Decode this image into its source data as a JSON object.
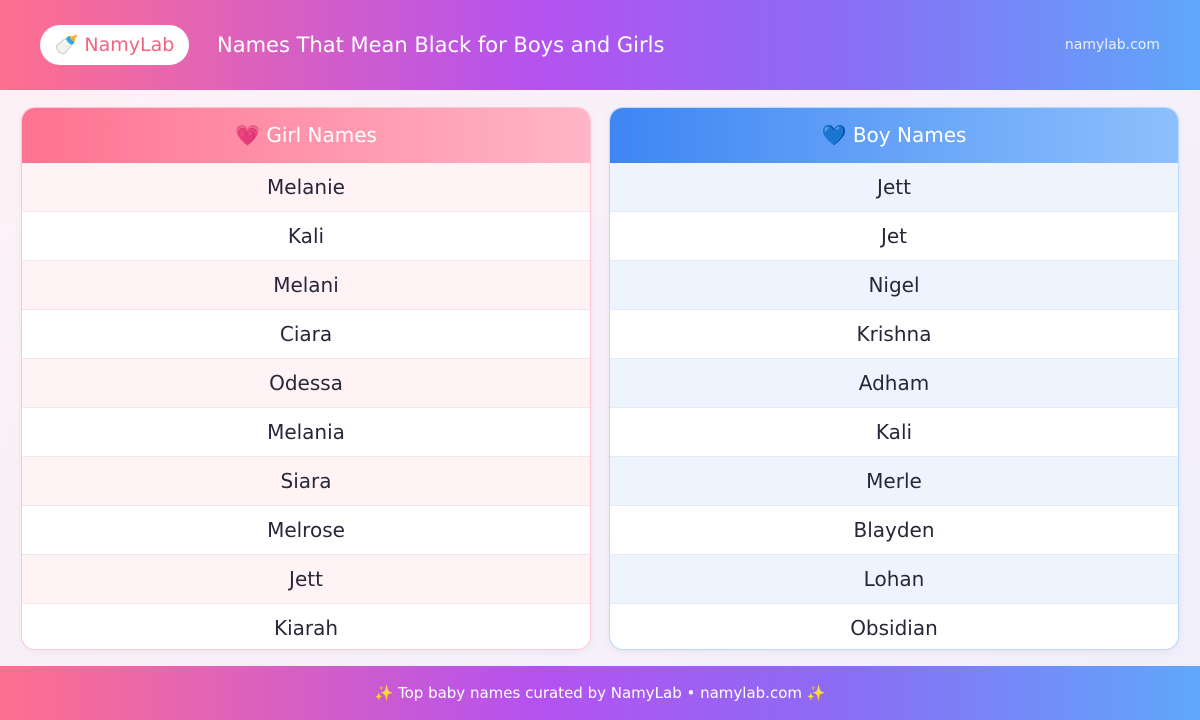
{
  "header": {
    "logo": "🍼 NamyLab",
    "title": "Names That Mean Black for Boys and Girls",
    "site": "namylab.com"
  },
  "girls": {
    "title": "💗 Girl Names",
    "names": [
      "Melanie",
      "Kali",
      "Melani",
      "Ciara",
      "Odessa",
      "Melania",
      "Siara",
      "Melrose",
      "Jett",
      "Kiarah"
    ]
  },
  "boys": {
    "title": "💙 Boy Names",
    "names": [
      "Jett",
      "Jet",
      "Nigel",
      "Krishna",
      "Adham",
      "Kali",
      "Merle",
      "Blayden",
      "Lohan",
      "Obsidian"
    ]
  },
  "footer": {
    "text": "✨ Top baby names curated by NamyLab • namylab.com ✨"
  }
}
